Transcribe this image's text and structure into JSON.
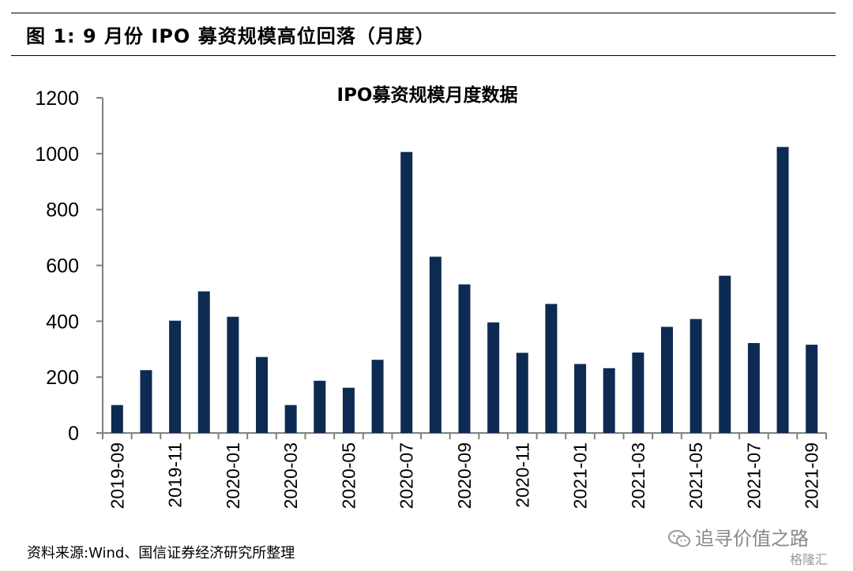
{
  "figure": {
    "title": "图 1:  9 月份 IPO 募资规模高位回落（月度）",
    "source": "资料来源:Wind、国信证券经济研究所整理"
  },
  "watermark": {
    "text": "追寻价值之路",
    "icon": "wechat-icon"
  },
  "brand": {
    "text": "格隆汇"
  },
  "colors": {
    "bar": "#0d2a52",
    "axis": "#808080"
  },
  "chart_data": {
    "type": "bar",
    "title": "IPO募资规模月度数据",
    "categories": [
      "2019-09",
      "2019-10",
      "2019-11",
      "2019-12",
      "2020-01",
      "2020-02",
      "2020-03",
      "2020-04",
      "2020-05",
      "2020-06",
      "2020-07",
      "2020-08",
      "2020-09",
      "2020-10",
      "2020-11",
      "2020-12",
      "2021-01",
      "2021-02",
      "2021-03",
      "2021-04",
      "2021-05",
      "2021-06",
      "2021-07",
      "2021-08",
      "2021-09"
    ],
    "tick_labels": [
      "2019-09",
      "",
      "2019-11",
      "",
      "2020-01",
      "",
      "2020-03",
      "",
      "2020-05",
      "",
      "2020-07",
      "",
      "2020-09",
      "",
      "2020-11",
      "",
      "2021-01",
      "",
      "2021-03",
      "",
      "2021-05",
      "",
      "2021-07",
      "",
      "2021-09"
    ],
    "values": [
      100,
      225,
      402,
      507,
      416,
      272,
      100,
      187,
      162,
      262,
      1006,
      631,
      532,
      396,
      287,
      462,
      247,
      232,
      288,
      380,
      408,
      563,
      322,
      1024,
      316
    ],
    "ylim": [
      0,
      1200
    ],
    "yticks": [
      0,
      200,
      400,
      600,
      800,
      1000,
      1200
    ],
    "grid": false,
    "legend": "none"
  }
}
